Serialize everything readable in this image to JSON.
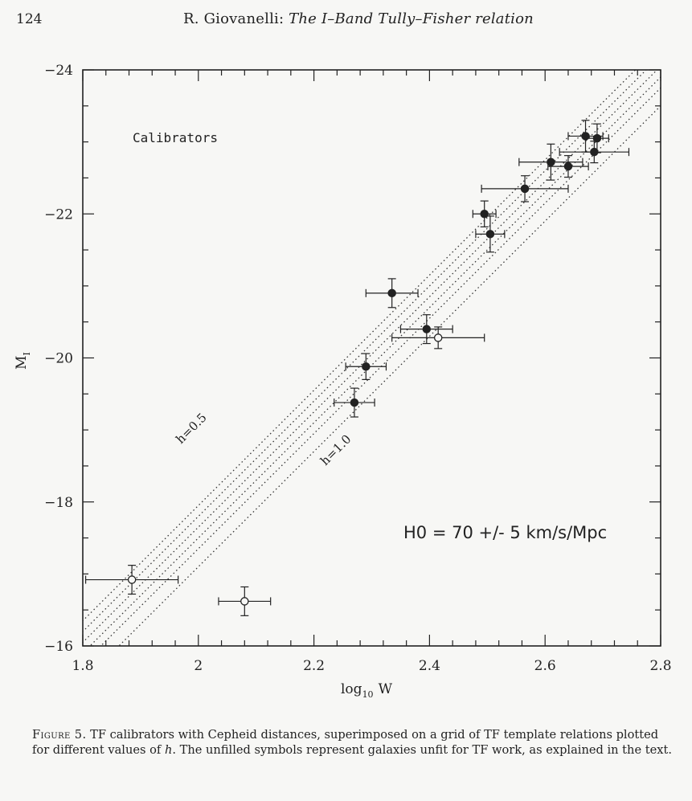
{
  "header": {
    "page_number": "124",
    "author": "R. Giovanelli:",
    "title": "The I–Band Tully–Fisher relation"
  },
  "chart_data": {
    "type": "scatter",
    "xlabel": "log",
    "xlabel_sub": "10",
    "xlabel_suffix": "W",
    "ylabel": "M",
    "ylabel_sub": "I",
    "xlim": [
      1.8,
      2.8
    ],
    "ylim": [
      -16,
      -24
    ],
    "x_ticks": [
      {
        "value": 1.8,
        "label": "1.8"
      },
      {
        "value": 2.0,
        "label": "2"
      },
      {
        "value": 2.2,
        "label": "2.2"
      },
      {
        "value": 2.4,
        "label": "2.4"
      },
      {
        "value": 2.6,
        "label": "2.6"
      },
      {
        "value": 2.8,
        "label": "2.8"
      }
    ],
    "y_ticks": [
      {
        "value": -24,
        "label": "−24"
      },
      {
        "value": -22,
        "label": "−22"
      },
      {
        "value": -20,
        "label": "−20"
      },
      {
        "value": -18,
        "label": "−18"
      },
      {
        "value": -16,
        "label": "−16"
      }
    ],
    "panel_label": "Calibrators",
    "grid_lines": {
      "slope": -8.0,
      "intercepts": [
        -1.1,
        -1.35,
        -1.5,
        -1.65,
        -1.8,
        -1.95
      ],
      "labels": [
        {
          "text": "h=0.5",
          "x": 1.97,
          "y": -18.8
        },
        {
          "text": "h=1.0",
          "x": 2.22,
          "y": -18.5
        }
      ]
    },
    "series": [
      {
        "filled": true,
        "points": [
          {
            "x": 2.335,
            "y": -20.9,
            "xerr": 0.045,
            "yerr": 0.2
          },
          {
            "x": 2.395,
            "y": -20.4,
            "xerr": 0.045,
            "yerr": 0.2
          },
          {
            "x": 2.29,
            "y": -19.88,
            "xerr": 0.035,
            "yerr": 0.18
          },
          {
            "x": 2.27,
            "y": -19.38,
            "xerr": 0.035,
            "yerr": 0.2
          },
          {
            "x": 2.495,
            "y": -22.0,
            "xerr": 0.02,
            "yerr": 0.18
          },
          {
            "x": 2.505,
            "y": -21.72,
            "xerr": 0.025,
            "yerr": 0.25
          },
          {
            "x": 2.565,
            "y": -22.35,
            "xerr": 0.075,
            "yerr": 0.18
          },
          {
            "x": 2.61,
            "y": -22.72,
            "xerr": 0.055,
            "yerr": 0.25
          },
          {
            "x": 2.64,
            "y": -22.66,
            "xerr": 0.035,
            "yerr": 0.15
          },
          {
            "x": 2.67,
            "y": -23.08,
            "xerr": 0.03,
            "yerr": 0.22
          },
          {
            "x": 2.69,
            "y": -23.05,
            "xerr": 0.02,
            "yerr": 0.2
          },
          {
            "x": 2.685,
            "y": -22.86,
            "xerr": 0.06,
            "yerr": 0.15
          }
        ]
      },
      {
        "filled": false,
        "points": [
          {
            "x": 2.415,
            "y": -20.28,
            "xerr": 0.08,
            "yerr": 0.15
          },
          {
            "x": 1.885,
            "y": -16.92,
            "xerr": 0.08,
            "yerr": 0.2
          },
          {
            "x": 2.08,
            "y": -16.62,
            "xerr": 0.045,
            "yerr": 0.2
          }
        ]
      }
    ],
    "annotation": "H0 = 70 +/- 5 km/s/Mpc"
  },
  "caption": {
    "label": "Figure 5.",
    "text_1": "TF calibrators with Cepheid distances, superimposed on a grid of TF template relations plotted for different values of",
    "text_h": "h",
    "text_2": ". The unfilled symbols represent galaxies unfit for TF work, as explained in the text."
  }
}
